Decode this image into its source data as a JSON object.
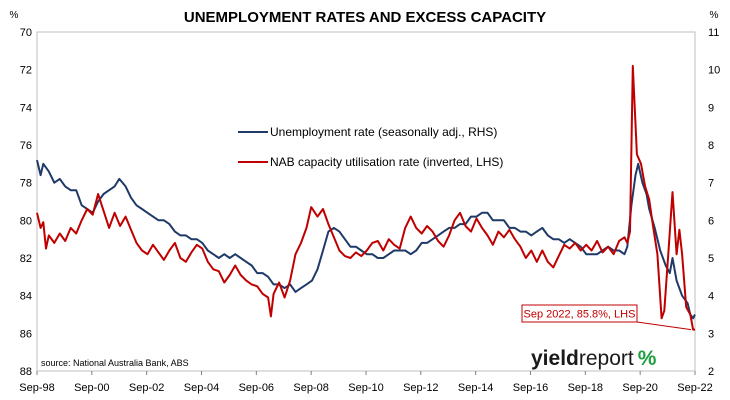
{
  "chart_data": {
    "type": "line",
    "title": "UNEMPLOYMENT RATES AND EXCESS CAPACITY",
    "left_unit": "%",
    "right_unit": "%",
    "left_axis": {
      "min": 70,
      "max": 88,
      "inverted": true,
      "ticks": [
        "70",
        "72",
        "74",
        "76",
        "78",
        "80",
        "82",
        "84",
        "86",
        "88"
      ]
    },
    "right_axis": {
      "min": 2,
      "max": 11,
      "ticks": [
        "2",
        "3",
        "4",
        "5",
        "6",
        "7",
        "8",
        "9",
        "10",
        "11"
      ]
    },
    "x_axis": {
      "start": 1998.67,
      "end": 2022.67,
      "ticks": [
        {
          "x": 1998.67,
          "label": "Sep-98"
        },
        {
          "x": 2000.67,
          "label": "Sep-00"
        },
        {
          "x": 2002.67,
          "label": "Sep-02"
        },
        {
          "x": 2004.67,
          "label": "Sep-04"
        },
        {
          "x": 2006.67,
          "label": "Sep-06"
        },
        {
          "x": 2008.67,
          "label": "Sep-08"
        },
        {
          "x": 2010.67,
          "label": "Sep-10"
        },
        {
          "x": 2012.67,
          "label": "Sep-12"
        },
        {
          "x": 2014.67,
          "label": "Sep-14"
        },
        {
          "x": 2016.67,
          "label": "Sep-16"
        },
        {
          "x": 2018.67,
          "label": "Sep-18"
        },
        {
          "x": 2020.67,
          "label": "Sep-20"
        },
        {
          "x": 2022.67,
          "label": "Sep-22"
        }
      ]
    },
    "grid": false,
    "legend_position": "top-center",
    "series": [
      {
        "name": "Unemployment rate (seasonally adj., RHS)",
        "axis": "right",
        "color": "#1f3a68",
        "points": [
          [
            1998.67,
            7.6
          ],
          [
            1998.8,
            7.2
          ],
          [
            1998.9,
            7.5
          ],
          [
            1999.1,
            7.3
          ],
          [
            1999.3,
            7.0
          ],
          [
            1999.5,
            7.1
          ],
          [
            1999.7,
            6.9
          ],
          [
            1999.9,
            6.8
          ],
          [
            2000.1,
            6.8
          ],
          [
            2000.3,
            6.4
          ],
          [
            2000.5,
            6.3
          ],
          [
            2000.7,
            6.2
          ],
          [
            2000.9,
            6.5
          ],
          [
            2001.1,
            6.7
          ],
          [
            2001.3,
            6.8
          ],
          [
            2001.5,
            6.9
          ],
          [
            2001.67,
            7.1
          ],
          [
            2001.9,
            6.9
          ],
          [
            2002.1,
            6.6
          ],
          [
            2002.3,
            6.4
          ],
          [
            2002.5,
            6.3
          ],
          [
            2002.7,
            6.2
          ],
          [
            2002.9,
            6.1
          ],
          [
            2003.1,
            6.0
          ],
          [
            2003.3,
            6.0
          ],
          [
            2003.5,
            5.9
          ],
          [
            2003.7,
            5.7
          ],
          [
            2003.9,
            5.6
          ],
          [
            2004.1,
            5.6
          ],
          [
            2004.3,
            5.5
          ],
          [
            2004.5,
            5.5
          ],
          [
            2004.7,
            5.4
          ],
          [
            2004.9,
            5.2
          ],
          [
            2005.1,
            5.1
          ],
          [
            2005.3,
            5.0
          ],
          [
            2005.5,
            5.1
          ],
          [
            2005.7,
            5.0
          ],
          [
            2005.9,
            5.1
          ],
          [
            2006.1,
            5.0
          ],
          [
            2006.3,
            4.9
          ],
          [
            2006.5,
            4.8
          ],
          [
            2006.7,
            4.6
          ],
          [
            2006.9,
            4.6
          ],
          [
            2007.1,
            4.5
          ],
          [
            2007.3,
            4.3
          ],
          [
            2007.5,
            4.3
          ],
          [
            2007.7,
            4.2
          ],
          [
            2007.9,
            4.3
          ],
          [
            2008.1,
            4.1
          ],
          [
            2008.3,
            4.2
          ],
          [
            2008.5,
            4.3
          ],
          [
            2008.7,
            4.4
          ],
          [
            2008.9,
            4.7
          ],
          [
            2009.1,
            5.2
          ],
          [
            2009.3,
            5.7
          ],
          [
            2009.5,
            5.8
          ],
          [
            2009.7,
            5.7
          ],
          [
            2009.9,
            5.5
          ],
          [
            2010.1,
            5.3
          ],
          [
            2010.3,
            5.3
          ],
          [
            2010.5,
            5.2
          ],
          [
            2010.7,
            5.1
          ],
          [
            2010.9,
            5.1
          ],
          [
            2011.1,
            5.0
          ],
          [
            2011.3,
            5.0
          ],
          [
            2011.5,
            5.1
          ],
          [
            2011.7,
            5.2
          ],
          [
            2011.9,
            5.2
          ],
          [
            2012.1,
            5.2
          ],
          [
            2012.3,
            5.1
          ],
          [
            2012.5,
            5.2
          ],
          [
            2012.7,
            5.4
          ],
          [
            2012.9,
            5.4
          ],
          [
            2013.1,
            5.5
          ],
          [
            2013.3,
            5.6
          ],
          [
            2013.5,
            5.7
          ],
          [
            2013.7,
            5.8
          ],
          [
            2013.9,
            5.8
          ],
          [
            2014.1,
            5.9
          ],
          [
            2014.3,
            5.9
          ],
          [
            2014.5,
            6.1
          ],
          [
            2014.7,
            6.1
          ],
          [
            2014.9,
            6.2
          ],
          [
            2015.1,
            6.2
          ],
          [
            2015.3,
            6.0
          ],
          [
            2015.5,
            6.0
          ],
          [
            2015.7,
            6.0
          ],
          [
            2015.9,
            5.8
          ],
          [
            2016.1,
            5.8
          ],
          [
            2016.3,
            5.7
          ],
          [
            2016.5,
            5.7
          ],
          [
            2016.7,
            5.6
          ],
          [
            2016.9,
            5.7
          ],
          [
            2017.1,
            5.8
          ],
          [
            2017.3,
            5.6
          ],
          [
            2017.5,
            5.5
          ],
          [
            2017.7,
            5.5
          ],
          [
            2017.9,
            5.4
          ],
          [
            2018.1,
            5.5
          ],
          [
            2018.3,
            5.4
          ],
          [
            2018.5,
            5.3
          ],
          [
            2018.7,
            5.1
          ],
          [
            2018.9,
            5.1
          ],
          [
            2019.1,
            5.1
          ],
          [
            2019.3,
            5.2
          ],
          [
            2019.5,
            5.3
          ],
          [
            2019.7,
            5.2
          ],
          [
            2019.9,
            5.2
          ],
          [
            2020.1,
            5.1
          ],
          [
            2020.2,
            5.3
          ],
          [
            2020.35,
            6.4
          ],
          [
            2020.5,
            7.2
          ],
          [
            2020.6,
            7.5
          ],
          [
            2020.75,
            7.0
          ],
          [
            2020.9,
            6.7
          ],
          [
            2021.0,
            6.3
          ],
          [
            2021.2,
            5.8
          ],
          [
            2021.4,
            5.2
          ],
          [
            2021.6,
            4.8
          ],
          [
            2021.75,
            4.6
          ],
          [
            2021.85,
            5.0
          ],
          [
            2022.0,
            4.4
          ],
          [
            2022.2,
            4.0
          ],
          [
            2022.4,
            3.8
          ],
          [
            2022.5,
            3.5
          ],
          [
            2022.6,
            3.4
          ],
          [
            2022.67,
            3.5
          ]
        ]
      },
      {
        "name": "NAB capacity utilisation rate (inverted, LHS)",
        "axis": "left",
        "color": "#c00000",
        "points": [
          [
            1998.67,
            79.6
          ],
          [
            1998.8,
            80.4
          ],
          [
            1998.9,
            80.1
          ],
          [
            1999.0,
            81.5
          ],
          [
            1999.1,
            80.8
          ],
          [
            1999.3,
            81.2
          ],
          [
            1999.5,
            80.7
          ],
          [
            1999.7,
            81.1
          ],
          [
            1999.9,
            80.4
          ],
          [
            2000.1,
            80.7
          ],
          [
            2000.3,
            80.0
          ],
          [
            2000.5,
            79.4
          ],
          [
            2000.7,
            79.7
          ],
          [
            2000.9,
            78.6
          ],
          [
            2001.1,
            79.5
          ],
          [
            2001.3,
            80.4
          ],
          [
            2001.5,
            79.6
          ],
          [
            2001.7,
            80.3
          ],
          [
            2001.9,
            79.8
          ],
          [
            2002.1,
            80.5
          ],
          [
            2002.3,
            81.2
          ],
          [
            2002.5,
            81.6
          ],
          [
            2002.7,
            81.8
          ],
          [
            2002.9,
            81.3
          ],
          [
            2003.1,
            81.7
          ],
          [
            2003.3,
            82.1
          ],
          [
            2003.5,
            81.6
          ],
          [
            2003.7,
            81.2
          ],
          [
            2003.9,
            82.0
          ],
          [
            2004.1,
            82.2
          ],
          [
            2004.3,
            81.7
          ],
          [
            2004.5,
            81.3
          ],
          [
            2004.7,
            81.5
          ],
          [
            2004.9,
            82.2
          ],
          [
            2005.1,
            82.6
          ],
          [
            2005.3,
            82.7
          ],
          [
            2005.5,
            83.3
          ],
          [
            2005.7,
            82.9
          ],
          [
            2005.9,
            82.4
          ],
          [
            2006.1,
            82.9
          ],
          [
            2006.3,
            83.2
          ],
          [
            2006.5,
            83.4
          ],
          [
            2006.7,
            83.5
          ],
          [
            2006.9,
            83.9
          ],
          [
            2007.1,
            84.1
          ],
          [
            2007.2,
            85.1
          ],
          [
            2007.3,
            83.9
          ],
          [
            2007.5,
            83.3
          ],
          [
            2007.7,
            84.1
          ],
          [
            2007.9,
            83.2
          ],
          [
            2008.1,
            81.8
          ],
          [
            2008.3,
            81.2
          ],
          [
            2008.5,
            80.4
          ],
          [
            2008.67,
            79.3
          ],
          [
            2008.9,
            79.8
          ],
          [
            2009.1,
            79.4
          ],
          [
            2009.3,
            80.2
          ],
          [
            2009.5,
            80.9
          ],
          [
            2009.7,
            81.6
          ],
          [
            2009.9,
            81.9
          ],
          [
            2010.1,
            82.0
          ],
          [
            2010.3,
            81.7
          ],
          [
            2010.5,
            81.9
          ],
          [
            2010.7,
            81.6
          ],
          [
            2010.9,
            81.2
          ],
          [
            2011.1,
            81.1
          ],
          [
            2011.3,
            81.6
          ],
          [
            2011.5,
            81.0
          ],
          [
            2011.7,
            81.3
          ],
          [
            2011.9,
            81.5
          ],
          [
            2012.1,
            80.4
          ],
          [
            2012.3,
            79.8
          ],
          [
            2012.5,
            80.4
          ],
          [
            2012.7,
            80.7
          ],
          [
            2012.9,
            80.3
          ],
          [
            2013.1,
            80.6
          ],
          [
            2013.3,
            81.1
          ],
          [
            2013.5,
            81.4
          ],
          [
            2013.7,
            80.8
          ],
          [
            2013.9,
            80.0
          ],
          [
            2014.1,
            79.6
          ],
          [
            2014.3,
            80.3
          ],
          [
            2014.5,
            80.6
          ],
          [
            2014.7,
            79.9
          ],
          [
            2014.9,
            80.4
          ],
          [
            2015.1,
            80.8
          ],
          [
            2015.3,
            81.3
          ],
          [
            2015.5,
            80.6
          ],
          [
            2015.7,
            80.9
          ],
          [
            2015.9,
            80.5
          ],
          [
            2016.1,
            81.0
          ],
          [
            2016.3,
            81.4
          ],
          [
            2016.5,
            82.0
          ],
          [
            2016.7,
            81.6
          ],
          [
            2016.9,
            82.2
          ],
          [
            2017.1,
            81.6
          ],
          [
            2017.3,
            82.2
          ],
          [
            2017.5,
            82.5
          ],
          [
            2017.7,
            81.9
          ],
          [
            2017.9,
            81.3
          ],
          [
            2018.1,
            81.5
          ],
          [
            2018.3,
            81.2
          ],
          [
            2018.5,
            81.6
          ],
          [
            2018.7,
            81.3
          ],
          [
            2018.9,
            81.6
          ],
          [
            2019.1,
            81.1
          ],
          [
            2019.3,
            81.7
          ],
          [
            2019.5,
            81.4
          ],
          [
            2019.7,
            81.8
          ],
          [
            2019.9,
            81.1
          ],
          [
            2020.1,
            80.9
          ],
          [
            2020.2,
            81.2
          ],
          [
            2020.3,
            80.6
          ],
          [
            2020.4,
            71.8
          ],
          [
            2020.55,
            76.5
          ],
          [
            2020.7,
            77.0
          ],
          [
            2020.85,
            78.2
          ],
          [
            2021.0,
            78.9
          ],
          [
            2021.15,
            80.4
          ],
          [
            2021.3,
            81.8
          ],
          [
            2021.45,
            85.2
          ],
          [
            2021.55,
            84.8
          ],
          [
            2021.7,
            81.7
          ],
          [
            2021.85,
            78.5
          ],
          [
            2022.0,
            81.8
          ],
          [
            2022.1,
            80.5
          ],
          [
            2022.2,
            81.8
          ],
          [
            2022.35,
            84.6
          ],
          [
            2022.5,
            85.0
          ],
          [
            2022.6,
            85.8
          ],
          [
            2022.67,
            85.8
          ]
        ]
      }
    ],
    "annotation": {
      "text": "Sep 2022, 85.8%, LHS",
      "x": 2022.67,
      "y": 85.8,
      "axis": "left"
    },
    "source": "source: National Australia Bank, ABS",
    "brand": {
      "part1": "yield",
      "part2": "report",
      "part3": "%"
    }
  }
}
